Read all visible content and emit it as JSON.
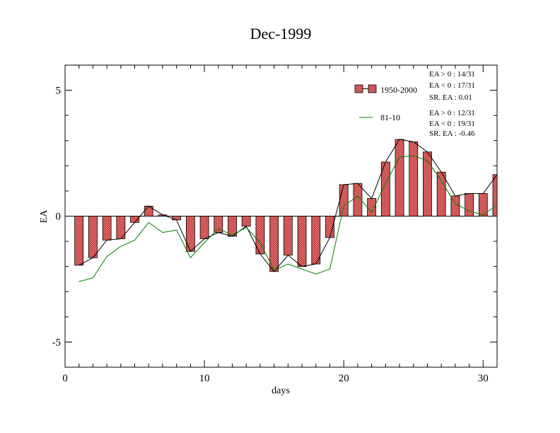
{
  "chart_data": {
    "type": "bar",
    "title": "Dec-1999",
    "xlabel": "days",
    "ylabel": "EA",
    "xlim": [
      0,
      31
    ],
    "ylim": [
      -6,
      6
    ],
    "x_ticks": [
      0,
      10,
      20,
      30
    ],
    "y_ticks": [
      -5,
      0,
      5
    ],
    "x": [
      1,
      2,
      3,
      4,
      5,
      6,
      7,
      8,
      9,
      10,
      11,
      12,
      13,
      14,
      15,
      16,
      17,
      18,
      19,
      20,
      21,
      22,
      23,
      24,
      25,
      26,
      27,
      28,
      29,
      30,
      31
    ],
    "series": [
      {
        "name": "1950-2000",
        "kind": "bar+line",
        "fill": "#f08080",
        "pattern": "checkered",
        "line_color": "#000000",
        "values": [
          -1.95,
          -1.65,
          -0.95,
          -0.9,
          -0.25,
          0.4,
          0.05,
          -0.15,
          -1.4,
          -0.9,
          -0.65,
          -0.8,
          -0.4,
          -1.5,
          -2.2,
          -1.55,
          -2.0,
          -1.9,
          -0.85,
          1.25,
          1.3,
          0.7,
          2.15,
          3.05,
          2.95,
          2.55,
          1.75,
          0.8,
          0.9,
          0.9,
          1.65
        ]
      },
      {
        "name": "81-10",
        "kind": "line",
        "line_color": "#008000",
        "values": [
          -2.6,
          -2.45,
          -1.6,
          -1.2,
          -0.95,
          -0.25,
          -0.65,
          -0.55,
          -1.65,
          -1.05,
          -0.5,
          -0.75,
          -0.45,
          -1.05,
          -2.15,
          -1.9,
          -2.1,
          -2.3,
          -2.1,
          0.4,
          0.8,
          0.15,
          1.3,
          2.35,
          2.4,
          2.2,
          1.4,
          0.5,
          0.2,
          0.05,
          0.45
        ]
      }
    ],
    "legend": [
      {
        "series": "1950-2000",
        "label": "1950-2000",
        "stats": [
          "EA > 0 : 14/31",
          "EA < 0 : 17/31",
          "SR. EA :  0.01"
        ]
      },
      {
        "series": "81-10",
        "label": "81-10",
        "stats": [
          "EA > 0 : 12/31",
          "EA < 0 : 19/31",
          "SR. EA : -0.46"
        ]
      }
    ],
    "legend_position": "top-right",
    "grid": false
  }
}
